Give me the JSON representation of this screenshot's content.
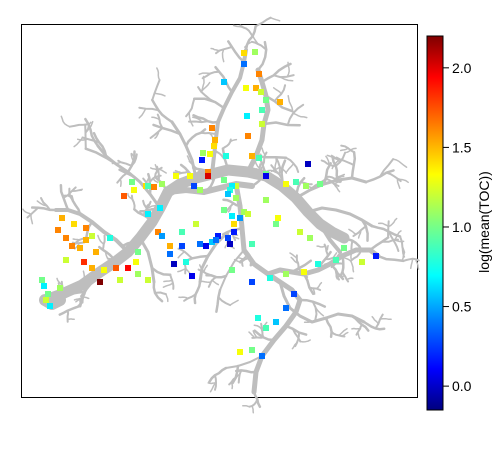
{
  "legend": {
    "title": "log(mean(TOC))",
    "range": [
      -0.15,
      2.2
    ],
    "ticks": [
      {
        "value": 0.0,
        "label": "0.0"
      },
      {
        "value": 0.5,
        "label": "0.5"
      },
      {
        "value": 1.0,
        "label": "1.0"
      },
      {
        "value": 1.5,
        "label": "1.5"
      },
      {
        "value": 2.0,
        "label": "2.0"
      }
    ],
    "colormap": [
      "#00007F",
      "#0000FF",
      "#007FFF",
      "#00FFFF",
      "#7FFF7F",
      "#FFFF00",
      "#FF7F00",
      "#FF0000",
      "#7F0000"
    ]
  },
  "colors": {
    "river": "#BEBEBE",
    "frame": "#000000",
    "background": "#FFFFFF"
  },
  "sites": [
    {
      "value": 1.4
    },
    {
      "value": 1.1
    },
    {
      "value": 0.4
    },
    {
      "value": 1.6
    },
    {
      "value": 1.5
    },
    {
      "value": 0.6
    },
    {
      "value": 1.3
    },
    {
      "value": 1.2
    },
    {
      "value": 1.0
    },
    {
      "value": 1.5
    },
    {
      "value": 0.9
    },
    {
      "value": 0.7
    },
    {
      "value": 1.6
    },
    {
      "value": 1.1
    },
    {
      "value": 0.2
    },
    {
      "value": 1.4
    },
    {
      "value": 1.5
    },
    {
      "value": 1.3
    },
    {
      "value": 0.8
    },
    {
      "value": 1.0
    },
    {
      "value": 1.6
    },
    {
      "value": 1.2
    },
    {
      "value": 1.5
    },
    {
      "value": 0.9
    },
    {
      "value": 1.6
    },
    {
      "value": 1.3
    },
    {
      "value": 1.0
    },
    {
      "value": 1.2
    },
    {
      "value": 2.0
    },
    {
      "value": 0.7
    },
    {
      "value": 1.1
    },
    {
      "value": 1.4
    },
    {
      "value": 1.6
    },
    {
      "value": 1.3
    },
    {
      "value": 1.7
    },
    {
      "value": 2.2
    },
    {
      "value": 1.5
    },
    {
      "value": 1.4
    },
    {
      "value": 1.6
    },
    {
      "value": 1.2
    },
    {
      "value": 0.8
    },
    {
      "value": 1.0
    },
    {
      "value": 0.9
    },
    {
      "value": 0.3
    },
    {
      "value": 1.1
    },
    {
      "value": 1.3
    },
    {
      "value": 0.8
    },
    {
      "value": 1.6
    },
    {
      "value": 1.6
    },
    {
      "value": 1.6
    },
    {
      "value": 1.5
    },
    {
      "value": 1.2
    },
    {
      "value": 1.5
    },
    {
      "value": 1.8
    },
    {
      "value": 1.5
    },
    {
      "value": 1.3
    },
    {
      "value": 1.5
    },
    {
      "value": 1.7
    },
    {
      "value": 1.9
    },
    {
      "value": 1.3
    },
    {
      "value": 1.1
    },
    {
      "value": 1.2
    },
    {
      "value": 0.1
    },
    {
      "value": 0.3
    },
    {
      "value": 0.4
    },
    {
      "value": 1.5
    },
    {
      "value": 0.6
    },
    {
      "value": 1.6
    },
    {
      "value": 0.2
    },
    {
      "value": 0.3
    },
    {
      "value": 1.4
    },
    {
      "value": 1.0
    },
    {
      "value": 0.7
    },
    {
      "value": 1.1
    },
    {
      "value": 1.2
    },
    {
      "value": 0.1
    },
    {
      "value": 0.0
    },
    {
      "value": 1.3
    },
    {
      "value": 0.9
    },
    {
      "value": 1.1
    },
    {
      "value": 1.0
    },
    {
      "value": 1.3
    },
    {
      "value": 1.2
    },
    {
      "value": 1.1
    },
    {
      "value": 0.9
    },
    {
      "value": 0.2
    },
    {
      "value": 0.4
    },
    {
      "value": 1.0
    },
    {
      "value": 0.3
    },
    {
      "value": 0.8
    },
    {
      "value": 1.1
    },
    {
      "value": 1.3
    },
    {
      "value": 0.8
    },
    {
      "value": 0.9
    },
    {
      "value": 1.0
    },
    {
      "value": 0.2
    },
    {
      "value": 1.2
    },
    {
      "value": 1.1
    },
    {
      "value": 1.0
    },
    {
      "value": 0.6
    },
    {
      "value": 1.1
    },
    {
      "value": 0.5
    },
    {
      "value": 0.0
    },
    {
      "value": 0.1
    },
    {
      "value": 0.0
    },
    {
      "value": 0.8
    },
    {
      "value": 0.9
    },
    {
      "value": 1.2
    },
    {
      "value": 0.5
    },
    {
      "value": 0.4
    },
    {
      "value": 0.7
    },
    {
      "value": 0.7
    },
    {
      "value": 1.0
    },
    {
      "value": 1.2
    },
    {
      "value": 0.7
    },
    {
      "value": 1.2
    },
    {
      "value": 0.7
    },
    {
      "value": 1.0
    },
    {
      "value": 1.1
    },
    {
      "value": 1.0
    },
    {
      "value": 0.3
    },
    {
      "value": 0.4
    },
    {
      "value": 0.6
    },
    {
      "value": 0.9
    },
    {
      "value": 0.8
    },
    {
      "value": 1.0
    },
    {
      "value": 0.4
    },
    {
      "value": 1.3
    }
  ]
}
